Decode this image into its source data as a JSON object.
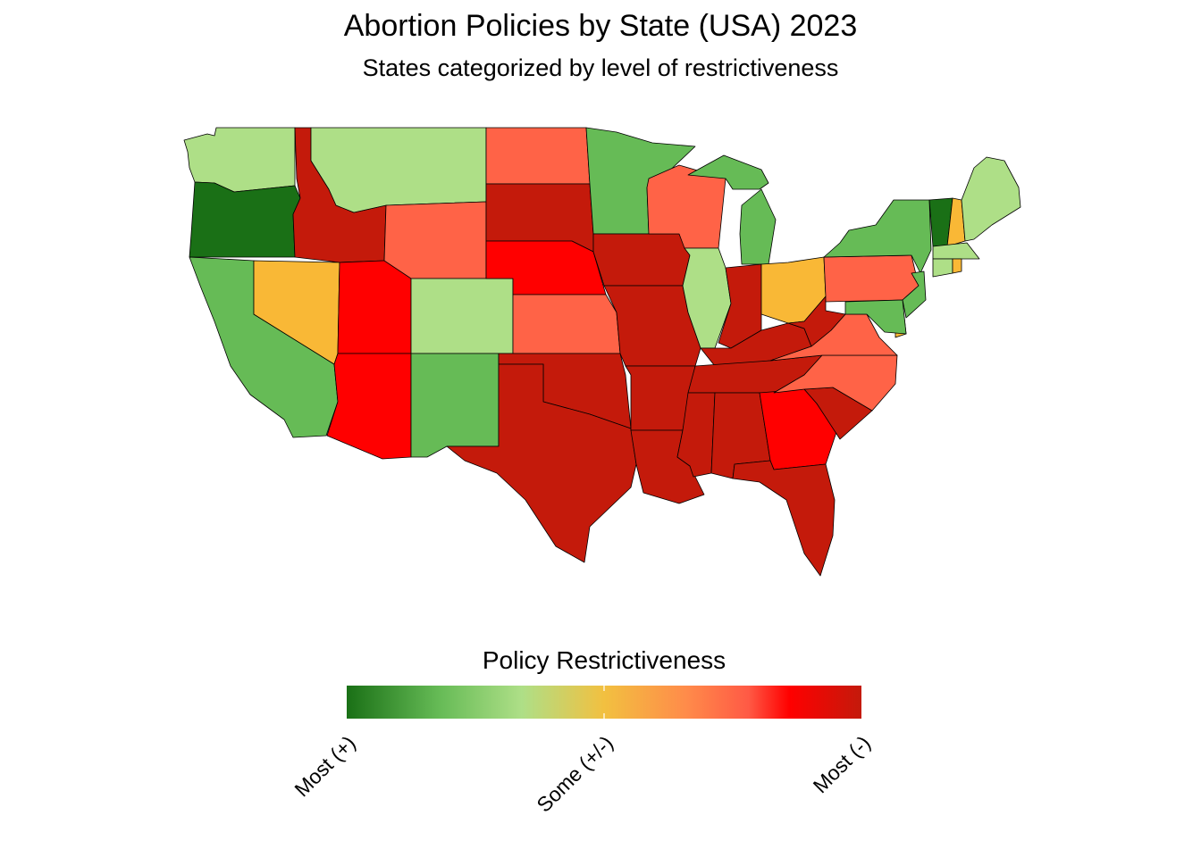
{
  "title": "Abortion Policies by State (USA) 2023",
  "subtitle": "States categorized by level of restrictiveness",
  "legend": {
    "title": "Policy Restrictiveness",
    "ticks": [
      {
        "label": "Most (+)",
        "value": 0.0
      },
      {
        "label": "Some (+/-)",
        "value": 0.5
      },
      {
        "label": "Most (-)",
        "value": 1.0
      }
    ],
    "gradient_stops": [
      {
        "offset": 0.0,
        "color": "#1a7016"
      },
      {
        "offset": 0.18,
        "color": "#66bb56"
      },
      {
        "offset": 0.34,
        "color": "#aedf87"
      },
      {
        "offset": 0.5,
        "color": "#f2c040"
      },
      {
        "offset": 0.66,
        "color": "#ff8b4a"
      },
      {
        "offset": 0.78,
        "color": "#ff5a45"
      },
      {
        "offset": 0.86,
        "color": "#ff0000"
      },
      {
        "offset": 1.0,
        "color": "#c41a0b"
      }
    ]
  },
  "categories": {
    "most_protective": "#1a7016",
    "very_protective": "#66bb56",
    "protective": "#aedf87",
    "some_restrictions": "#f9b836",
    "restrictive": "#ff6347",
    "very_restrictive": "#ff0000",
    "most_restrictive": "#c41a0b"
  },
  "states": [
    {
      "name": "Washington",
      "category": "protective"
    },
    {
      "name": "Oregon",
      "category": "most_protective"
    },
    {
      "name": "California",
      "category": "very_protective"
    },
    {
      "name": "Idaho",
      "category": "most_restrictive"
    },
    {
      "name": "Nevada",
      "category": "some_restrictions"
    },
    {
      "name": "Utah",
      "category": "very_restrictive"
    },
    {
      "name": "Arizona",
      "category": "very_restrictive"
    },
    {
      "name": "Montana",
      "category": "protective"
    },
    {
      "name": "Wyoming",
      "category": "restrictive"
    },
    {
      "name": "Colorado",
      "category": "protective"
    },
    {
      "name": "New Mexico",
      "category": "very_protective"
    },
    {
      "name": "North Dakota",
      "category": "restrictive"
    },
    {
      "name": "South Dakota",
      "category": "most_restrictive"
    },
    {
      "name": "Nebraska",
      "category": "very_restrictive"
    },
    {
      "name": "Kansas",
      "category": "restrictive"
    },
    {
      "name": "Oklahoma",
      "category": "most_restrictive"
    },
    {
      "name": "Texas",
      "category": "most_restrictive"
    },
    {
      "name": "Minnesota",
      "category": "very_protective"
    },
    {
      "name": "Iowa",
      "category": "most_restrictive"
    },
    {
      "name": "Missouri",
      "category": "most_restrictive"
    },
    {
      "name": "Arkansas",
      "category": "most_restrictive"
    },
    {
      "name": "Louisiana",
      "category": "most_restrictive"
    },
    {
      "name": "Wisconsin",
      "category": "restrictive"
    },
    {
      "name": "Illinois",
      "category": "protective"
    },
    {
      "name": "Michigan",
      "category": "very_protective"
    },
    {
      "name": "Indiana",
      "category": "most_restrictive"
    },
    {
      "name": "Ohio",
      "category": "some_restrictions"
    },
    {
      "name": "Kentucky",
      "category": "most_restrictive"
    },
    {
      "name": "Tennessee",
      "category": "most_restrictive"
    },
    {
      "name": "Mississippi",
      "category": "most_restrictive"
    },
    {
      "name": "Alabama",
      "category": "most_restrictive"
    },
    {
      "name": "Georgia",
      "category": "very_restrictive"
    },
    {
      "name": "Florida",
      "category": "most_restrictive"
    },
    {
      "name": "South Carolina",
      "category": "most_restrictive"
    },
    {
      "name": "North Carolina",
      "category": "restrictive"
    },
    {
      "name": "Virginia",
      "category": "restrictive"
    },
    {
      "name": "West Virginia",
      "category": "most_restrictive"
    },
    {
      "name": "Pennsylvania",
      "category": "restrictive"
    },
    {
      "name": "New York",
      "category": "very_protective"
    },
    {
      "name": "New Jersey",
      "category": "very_protective"
    },
    {
      "name": "Delaware",
      "category": "some_restrictions"
    },
    {
      "name": "Maryland",
      "category": "very_protective"
    },
    {
      "name": "Vermont",
      "category": "most_protective"
    },
    {
      "name": "New Hampshire",
      "category": "some_restrictions"
    },
    {
      "name": "Maine",
      "category": "protective"
    },
    {
      "name": "Massachusetts",
      "category": "protective"
    },
    {
      "name": "Connecticut",
      "category": "protective"
    },
    {
      "name": "Rhode Island",
      "category": "some_restrictions"
    }
  ]
}
